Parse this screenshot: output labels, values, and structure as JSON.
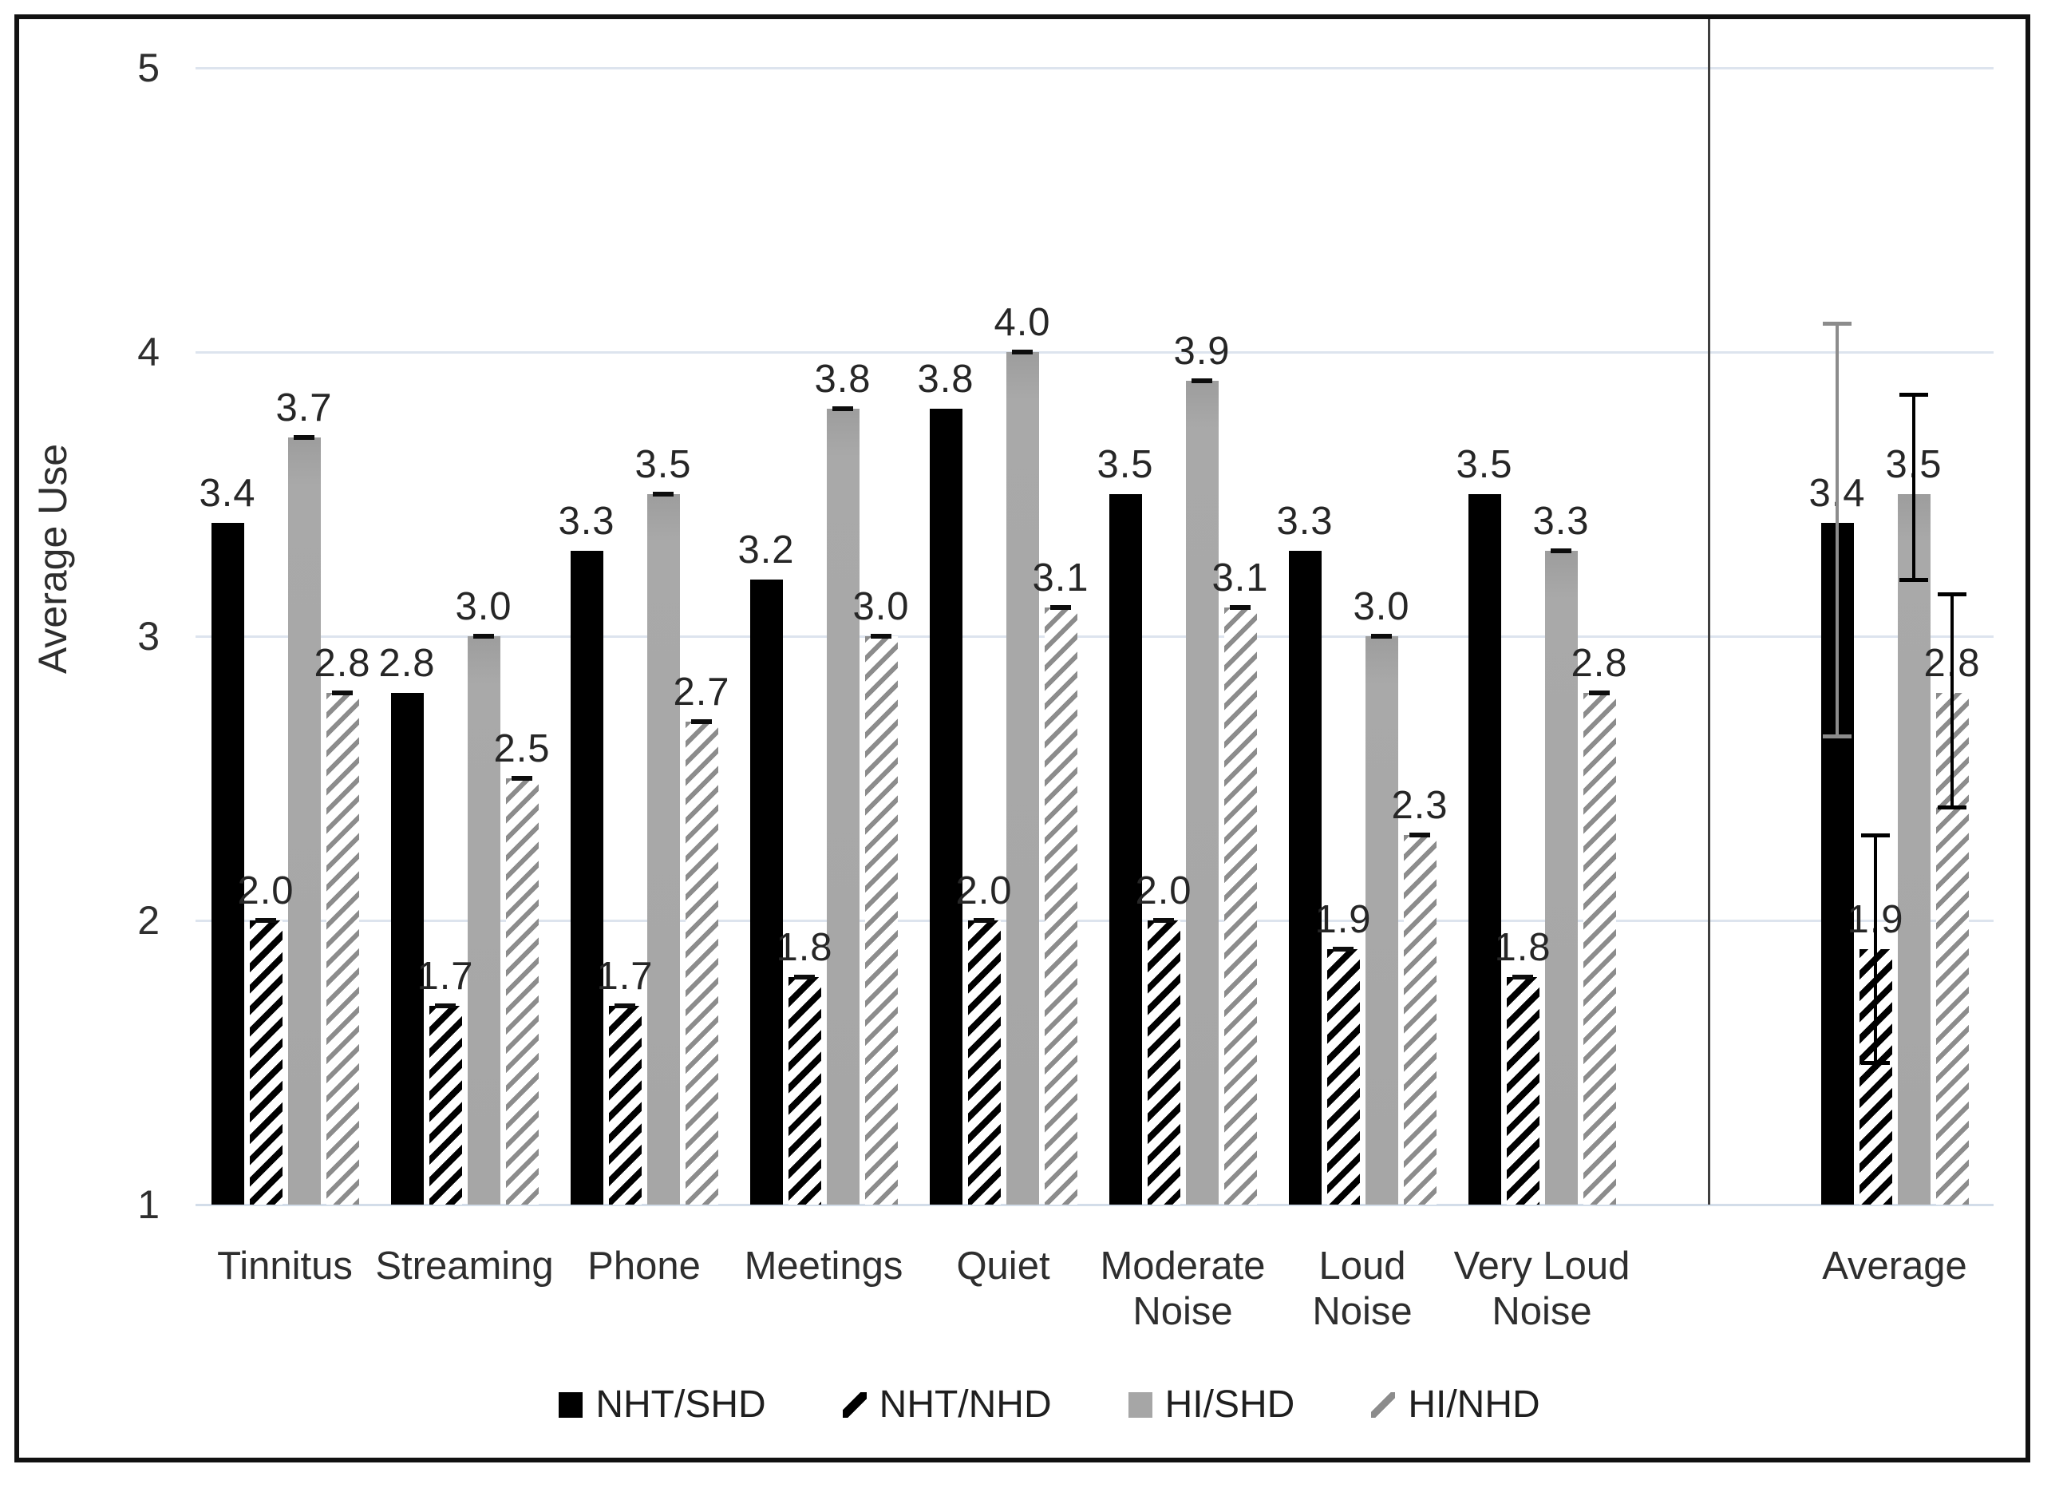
{
  "chart_data": {
    "type": "bar",
    "title": "",
    "ylabel": "Average Use",
    "xlabel": "",
    "ylim": [
      1,
      5
    ],
    "yticks": [
      5,
      4,
      3,
      2,
      1
    ],
    "grid": true,
    "legend_position": "bottom",
    "categories": [
      "Tinnitus",
      "Streaming",
      "Phone",
      "Meetings",
      "Quiet",
      "Moderate Noise",
      "Loud Noise",
      "Very Loud Noise",
      "Average"
    ],
    "category_display": [
      "Tinnitus",
      "Streaming",
      "Phone",
      "Meetings",
      "Quiet",
      "Moderate\nNoise",
      "Loud\nNoise",
      "Very Loud\nNoise",
      "Average"
    ],
    "series": [
      {
        "name": "NHT/SHD",
        "pattern": "solid-black",
        "values": [
          3.4,
          2.8,
          3.3,
          3.2,
          3.8,
          3.5,
          3.3,
          3.5,
          3.4
        ]
      },
      {
        "name": "NHT/NHD",
        "pattern": "black-hatch",
        "values": [
          2.0,
          1.7,
          1.7,
          1.8,
          2.0,
          2.0,
          1.9,
          1.8,
          1.9
        ]
      },
      {
        "name": "HI/SHD",
        "pattern": "solid-gray",
        "values": [
          3.7,
          3.0,
          3.5,
          3.8,
          4.0,
          3.9,
          3.0,
          3.3,
          3.5
        ]
      },
      {
        "name": "HI/NHD",
        "pattern": "gray-hatch",
        "values": [
          2.8,
          2.5,
          2.7,
          3.0,
          3.1,
          3.1,
          2.3,
          2.8,
          2.8
        ]
      }
    ],
    "value_label_decimals": 1,
    "error_bars": [
      {
        "category": "Average",
        "series": "NHT/SHD",
        "low": 2.65,
        "high": 4.1,
        "color": "#8c8c8c"
      },
      {
        "category": "Average",
        "series": "NHT/NHD",
        "low": 1.5,
        "high": 2.3,
        "color": "#000000"
      },
      {
        "category": "Average",
        "series": "HI/SHD",
        "low": 3.2,
        "high": 3.85,
        "color": "#000000"
      },
      {
        "category": "Average",
        "series": "HI/NHD",
        "low": 2.4,
        "high": 3.15,
        "color": "#000000"
      }
    ],
    "separator_before_category": "Average",
    "colors": {
      "bar_black": "#000000",
      "bar_gray": "#a6a6a6",
      "hatch_gray": "#8c8c8c",
      "gridline": "#dde4ee",
      "axis_line": "#d3dde9",
      "separator": "#3f3f3f",
      "value_label": "#262626",
      "tick_label": "#2e2e2e",
      "frame_border": "#111111"
    }
  }
}
